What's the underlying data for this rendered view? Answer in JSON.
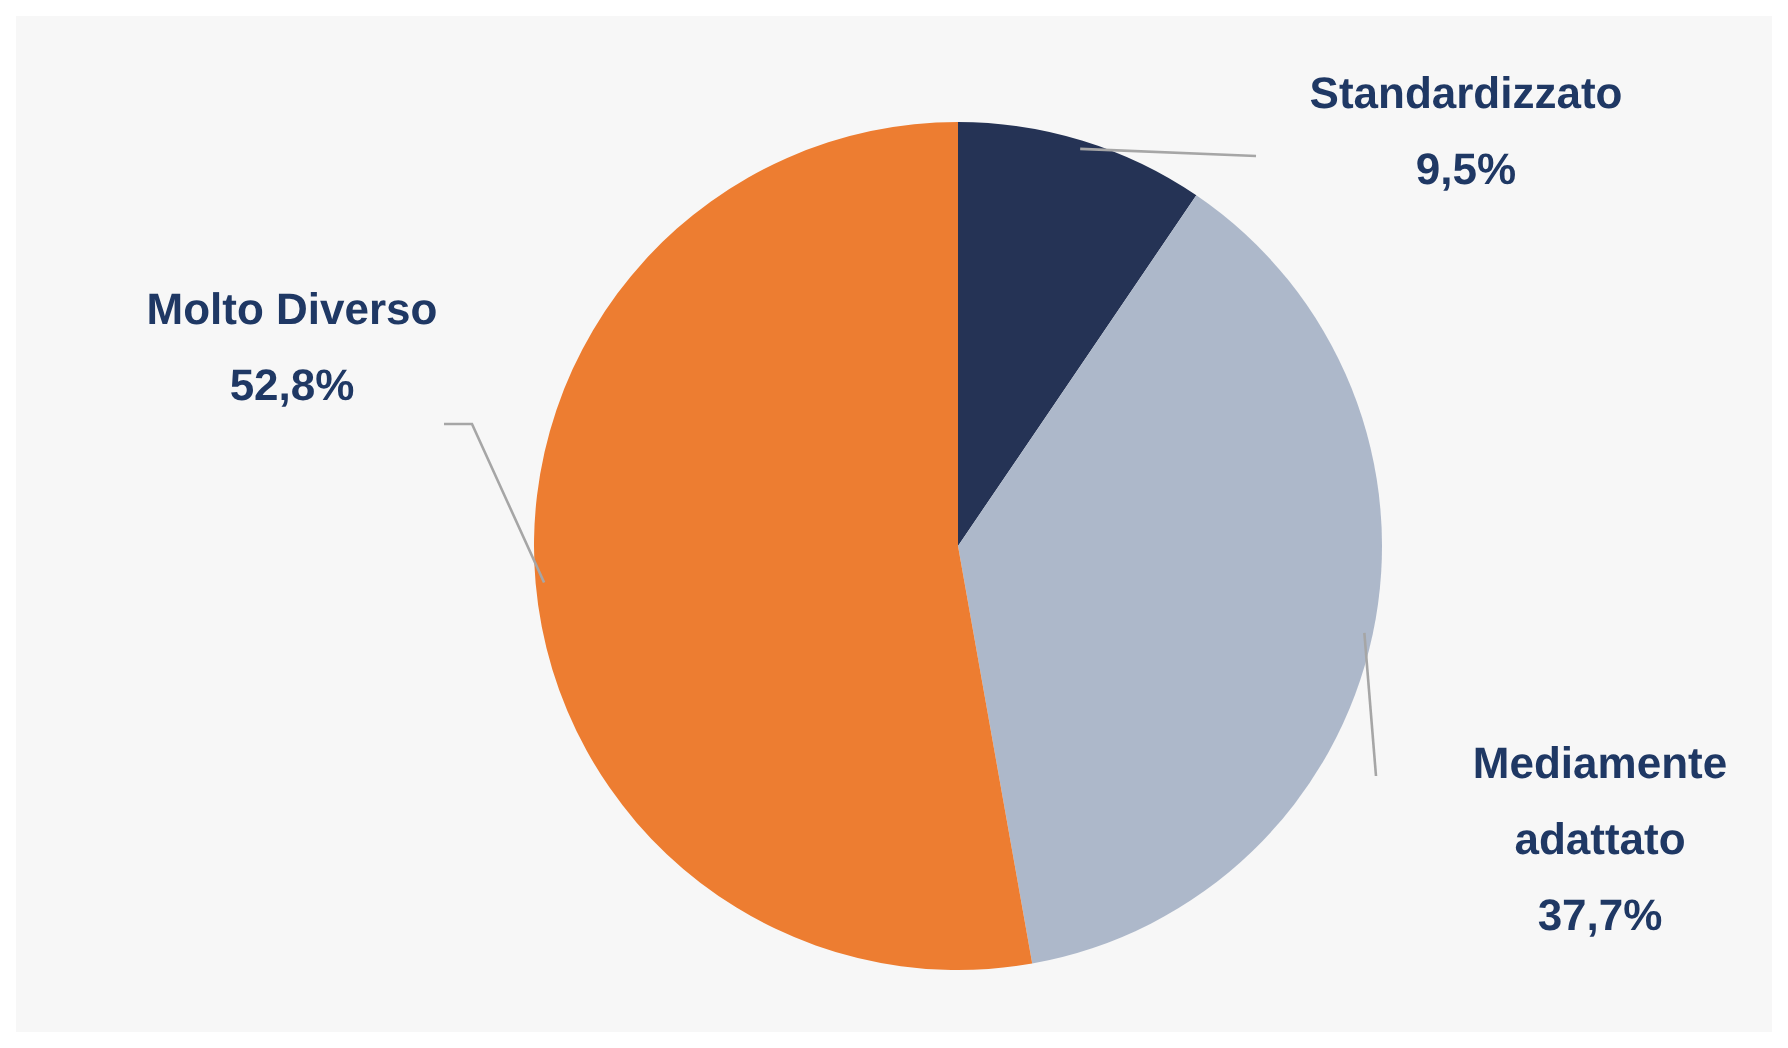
{
  "chart_data": {
    "type": "pie",
    "categories": [
      "Standardizzato",
      "Mediamente adattato",
      "Molto Diverso"
    ],
    "values": [
      9.5,
      37.7,
      52.8
    ],
    "colors": [
      "#253355",
      "#adb8ca",
      "#ed7d31"
    ],
    "value_labels": [
      "9,5%",
      "37,7%",
      "52,8%"
    ],
    "legend": false
  }
}
